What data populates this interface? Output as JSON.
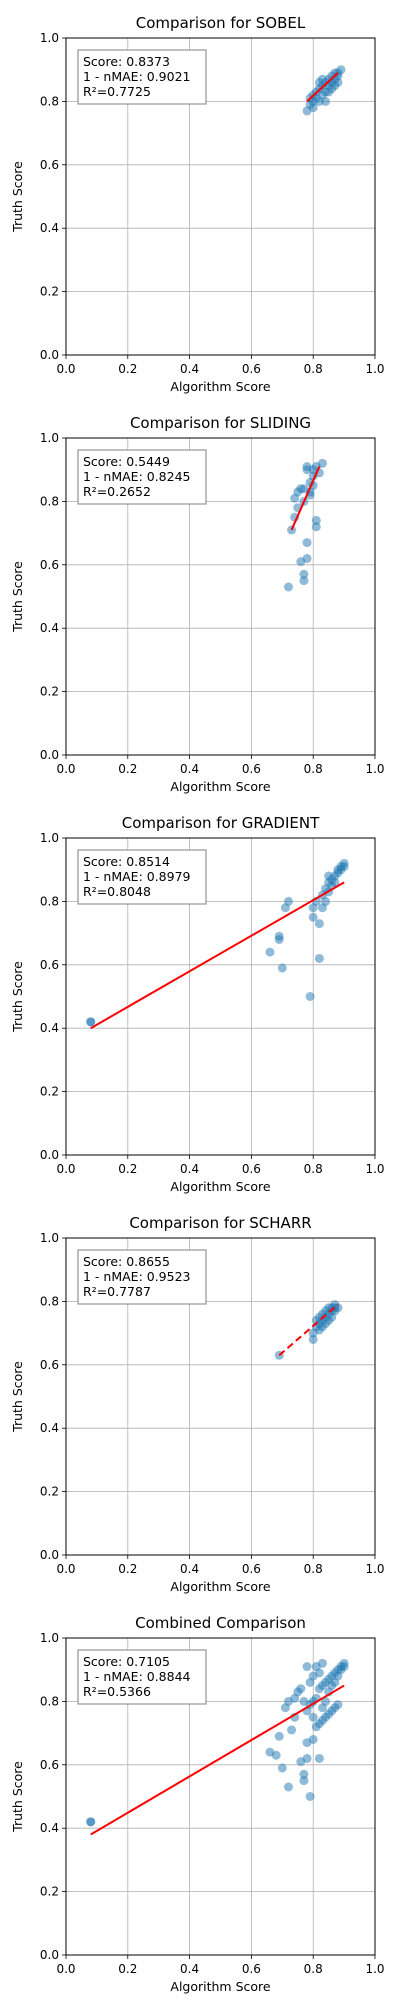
{
  "chart_data": [
    {
      "type": "scatter",
      "title": "Comparison for SOBEL",
      "xlabel": "Algorithm Score",
      "ylabel": "Truth Score",
      "xlim": [
        0,
        1
      ],
      "ylim": [
        0,
        1
      ],
      "xticks": [
        "0.0",
        "0.2",
        "0.4",
        "0.6",
        "0.8",
        "1.0"
      ],
      "yticks": [
        "0.0",
        "0.2",
        "0.4",
        "0.6",
        "0.8",
        "1.0"
      ],
      "grid": true,
      "stats": [
        "Score: 0.8373",
        "1 - nMAE: 0.9021",
        "R²=0.7725"
      ],
      "fit_style": "solid",
      "fit_line": [
        [
          0.78,
          0.8
        ],
        [
          0.88,
          0.89
        ]
      ],
      "points": [
        [
          0.78,
          0.77
        ],
        [
          0.79,
          0.79
        ],
        [
          0.8,
          0.8
        ],
        [
          0.8,
          0.82
        ],
        [
          0.81,
          0.81
        ],
        [
          0.81,
          0.83
        ],
        [
          0.82,
          0.8
        ],
        [
          0.82,
          0.84
        ],
        [
          0.83,
          0.82
        ],
        [
          0.83,
          0.85
        ],
        [
          0.84,
          0.83
        ],
        [
          0.84,
          0.86
        ],
        [
          0.85,
          0.85
        ],
        [
          0.85,
          0.87
        ],
        [
          0.86,
          0.86
        ],
        [
          0.86,
          0.88
        ],
        [
          0.87,
          0.87
        ],
        [
          0.87,
          0.89
        ],
        [
          0.88,
          0.88
        ],
        [
          0.88,
          0.89
        ],
        [
          0.89,
          0.9
        ],
        [
          0.84,
          0.8
        ],
        [
          0.82,
          0.86
        ],
        [
          0.85,
          0.83
        ],
        [
          0.8,
          0.78
        ],
        [
          0.86,
          0.84
        ],
        [
          0.83,
          0.87
        ],
        [
          0.87,
          0.85
        ],
        [
          0.79,
          0.81
        ],
        [
          0.88,
          0.86
        ]
      ]
    },
    {
      "type": "scatter",
      "title": "Comparison for SLIDING",
      "xlabel": "Algorithm Score",
      "ylabel": "Truth Score",
      "xlim": [
        0,
        1
      ],
      "ylim": [
        0,
        1
      ],
      "xticks": [
        "0.0",
        "0.2",
        "0.4",
        "0.6",
        "0.8",
        "1.0"
      ],
      "yticks": [
        "0.0",
        "0.2",
        "0.4",
        "0.6",
        "0.8",
        "1.0"
      ],
      "grid": true,
      "stats": [
        "Score: 0.5449",
        "1 - nMAE: 0.8245",
        "R²=0.2652"
      ],
      "fit_style": "solid",
      "fit_line": [
        [
          0.73,
          0.71
        ],
        [
          0.82,
          0.91
        ]
      ],
      "points": [
        [
          0.72,
          0.53
        ],
        [
          0.73,
          0.71
        ],
        [
          0.74,
          0.75
        ],
        [
          0.74,
          0.81
        ],
        [
          0.75,
          0.83
        ],
        [
          0.75,
          0.78
        ],
        [
          0.76,
          0.61
        ],
        [
          0.76,
          0.84
        ],
        [
          0.77,
          0.55
        ],
        [
          0.77,
          0.57
        ],
        [
          0.77,
          0.8
        ],
        [
          0.77,
          0.84
        ],
        [
          0.78,
          0.62
        ],
        [
          0.78,
          0.67
        ],
        [
          0.78,
          0.91
        ],
        [
          0.78,
          0.9
        ],
        [
          0.79,
          0.82
        ],
        [
          0.79,
          0.86
        ],
        [
          0.8,
          0.88
        ],
        [
          0.8,
          0.85
        ],
        [
          0.81,
          0.91
        ],
        [
          0.81,
          0.72
        ],
        [
          0.81,
          0.74
        ],
        [
          0.82,
          0.89
        ],
        [
          0.83,
          0.92
        ],
        [
          0.79,
          0.83
        ],
        [
          0.8,
          0.9
        ]
      ]
    },
    {
      "type": "scatter",
      "title": "Comparison for GRADIENT",
      "xlabel": "Algorithm Score",
      "ylabel": "Truth Score",
      "xlim": [
        0,
        1
      ],
      "ylim": [
        0,
        1
      ],
      "xticks": [
        "0.0",
        "0.2",
        "0.4",
        "0.6",
        "0.8",
        "1.0"
      ],
      "yticks": [
        "0.0",
        "0.2",
        "0.4",
        "0.6",
        "0.8",
        "1.0"
      ],
      "grid": true,
      "stats": [
        "Score: 0.8514",
        "1 - nMAE: 0.8979",
        "R²=0.8048"
      ],
      "fit_style": "solid",
      "fit_line": [
        [
          0.08,
          0.4
        ],
        [
          0.9,
          0.86
        ]
      ],
      "points": [
        [
          0.08,
          0.42
        ],
        [
          0.08,
          0.42
        ],
        [
          0.66,
          0.64
        ],
        [
          0.69,
          0.68
        ],
        [
          0.69,
          0.69
        ],
        [
          0.7,
          0.59
        ],
        [
          0.71,
          0.78
        ],
        [
          0.72,
          0.8
        ],
        [
          0.79,
          0.5
        ],
        [
          0.8,
          0.75
        ],
        [
          0.8,
          0.78
        ],
        [
          0.81,
          0.8
        ],
        [
          0.82,
          0.62
        ],
        [
          0.82,
          0.73
        ],
        [
          0.83,
          0.78
        ],
        [
          0.83,
          0.82
        ],
        [
          0.84,
          0.84
        ],
        [
          0.84,
          0.8
        ],
        [
          0.85,
          0.86
        ],
        [
          0.85,
          0.83
        ],
        [
          0.86,
          0.87
        ],
        [
          0.86,
          0.85
        ],
        [
          0.87,
          0.88
        ],
        [
          0.87,
          0.86
        ],
        [
          0.88,
          0.89
        ],
        [
          0.88,
          0.9
        ],
        [
          0.89,
          0.91
        ],
        [
          0.89,
          0.9
        ],
        [
          0.9,
          0.92
        ],
        [
          0.9,
          0.91
        ],
        [
          0.85,
          0.88
        ]
      ]
    },
    {
      "type": "scatter",
      "title": "Comparison for SCHARR",
      "xlabel": "Algorithm Score",
      "ylabel": "Truth Score",
      "xlim": [
        0,
        1
      ],
      "ylim": [
        0,
        1
      ],
      "xticks": [
        "0.0",
        "0.2",
        "0.4",
        "0.6",
        "0.8",
        "1.0"
      ],
      "yticks": [
        "0.0",
        "0.2",
        "0.4",
        "0.6",
        "0.8",
        "1.0"
      ],
      "grid": true,
      "stats": [
        "Score: 0.8655",
        "1 - nMAE: 0.9523",
        "R²=0.7787"
      ],
      "fit_style": "dashed",
      "fit_line": [
        [
          0.69,
          0.63
        ],
        [
          0.88,
          0.79
        ]
      ],
      "points": [
        [
          0.69,
          0.63
        ],
        [
          0.8,
          0.68
        ],
        [
          0.8,
          0.7
        ],
        [
          0.81,
          0.72
        ],
        [
          0.81,
          0.74
        ],
        [
          0.82,
          0.73
        ],
        [
          0.82,
          0.75
        ],
        [
          0.83,
          0.74
        ],
        [
          0.83,
          0.76
        ],
        [
          0.84,
          0.75
        ],
        [
          0.84,
          0.77
        ],
        [
          0.85,
          0.76
        ],
        [
          0.85,
          0.78
        ],
        [
          0.86,
          0.77
        ],
        [
          0.86,
          0.78
        ],
        [
          0.87,
          0.78
        ],
        [
          0.87,
          0.79
        ],
        [
          0.88,
          0.78
        ],
        [
          0.82,
          0.71
        ],
        [
          0.83,
          0.72
        ],
        [
          0.85,
          0.74
        ],
        [
          0.86,
          0.75
        ],
        [
          0.84,
          0.73
        ],
        [
          0.87,
          0.77
        ]
      ]
    },
    {
      "type": "scatter",
      "title": "Combined Comparison",
      "xlabel": "Algorithm Score",
      "ylabel": "Truth Score",
      "xlim": [
        0,
        1
      ],
      "ylim": [
        0,
        1
      ],
      "xticks": [
        "0.0",
        "0.2",
        "0.4",
        "0.6",
        "0.8",
        "1.0"
      ],
      "yticks": [
        "0.0",
        "0.2",
        "0.4",
        "0.6",
        "0.8",
        "1.0"
      ],
      "grid": true,
      "stats": [
        "Score: 0.7105",
        "1 - nMAE: 0.8844",
        "R²=0.5366"
      ],
      "fit_style": "solid",
      "fit_line": [
        [
          0.08,
          0.38
        ],
        [
          0.9,
          0.85
        ]
      ],
      "points": [
        [
          0.08,
          0.42
        ],
        [
          0.08,
          0.42
        ],
        [
          0.66,
          0.64
        ],
        [
          0.68,
          0.63
        ],
        [
          0.69,
          0.69
        ],
        [
          0.7,
          0.59
        ],
        [
          0.71,
          0.78
        ],
        [
          0.72,
          0.53
        ],
        [
          0.72,
          0.8
        ],
        [
          0.73,
          0.71
        ],
        [
          0.74,
          0.75
        ],
        [
          0.74,
          0.81
        ],
        [
          0.75,
          0.83
        ],
        [
          0.76,
          0.61
        ],
        [
          0.76,
          0.84
        ],
        [
          0.77,
          0.55
        ],
        [
          0.77,
          0.57
        ],
        [
          0.77,
          0.8
        ],
        [
          0.78,
          0.62
        ],
        [
          0.78,
          0.67
        ],
        [
          0.78,
          0.77
        ],
        [
          0.78,
          0.91
        ],
        [
          0.79,
          0.5
        ],
        [
          0.79,
          0.79
        ],
        [
          0.79,
          0.86
        ],
        [
          0.8,
          0.68
        ],
        [
          0.8,
          0.75
        ],
        [
          0.8,
          0.8
        ],
        [
          0.8,
          0.88
        ],
        [
          0.81,
          0.72
        ],
        [
          0.81,
          0.81
        ],
        [
          0.81,
          0.91
        ],
        [
          0.82,
          0.62
        ],
        [
          0.82,
          0.73
        ],
        [
          0.82,
          0.84
        ],
        [
          0.82,
          0.89
        ],
        [
          0.83,
          0.74
        ],
        [
          0.83,
          0.78
        ],
        [
          0.83,
          0.85
        ],
        [
          0.83,
          0.92
        ],
        [
          0.84,
          0.75
        ],
        [
          0.84,
          0.8
        ],
        [
          0.84,
          0.86
        ],
        [
          0.85,
          0.76
        ],
        [
          0.85,
          0.83
        ],
        [
          0.85,
          0.87
        ],
        [
          0.86,
          0.77
        ],
        [
          0.86,
          0.85
        ],
        [
          0.86,
          0.88
        ],
        [
          0.87,
          0.78
        ],
        [
          0.87,
          0.86
        ],
        [
          0.87,
          0.89
        ],
        [
          0.88,
          0.79
        ],
        [
          0.88,
          0.88
        ],
        [
          0.88,
          0.9
        ],
        [
          0.89,
          0.9
        ],
        [
          0.89,
          0.91
        ],
        [
          0.9,
          0.91
        ],
        [
          0.9,
          0.92
        ]
      ]
    }
  ]
}
